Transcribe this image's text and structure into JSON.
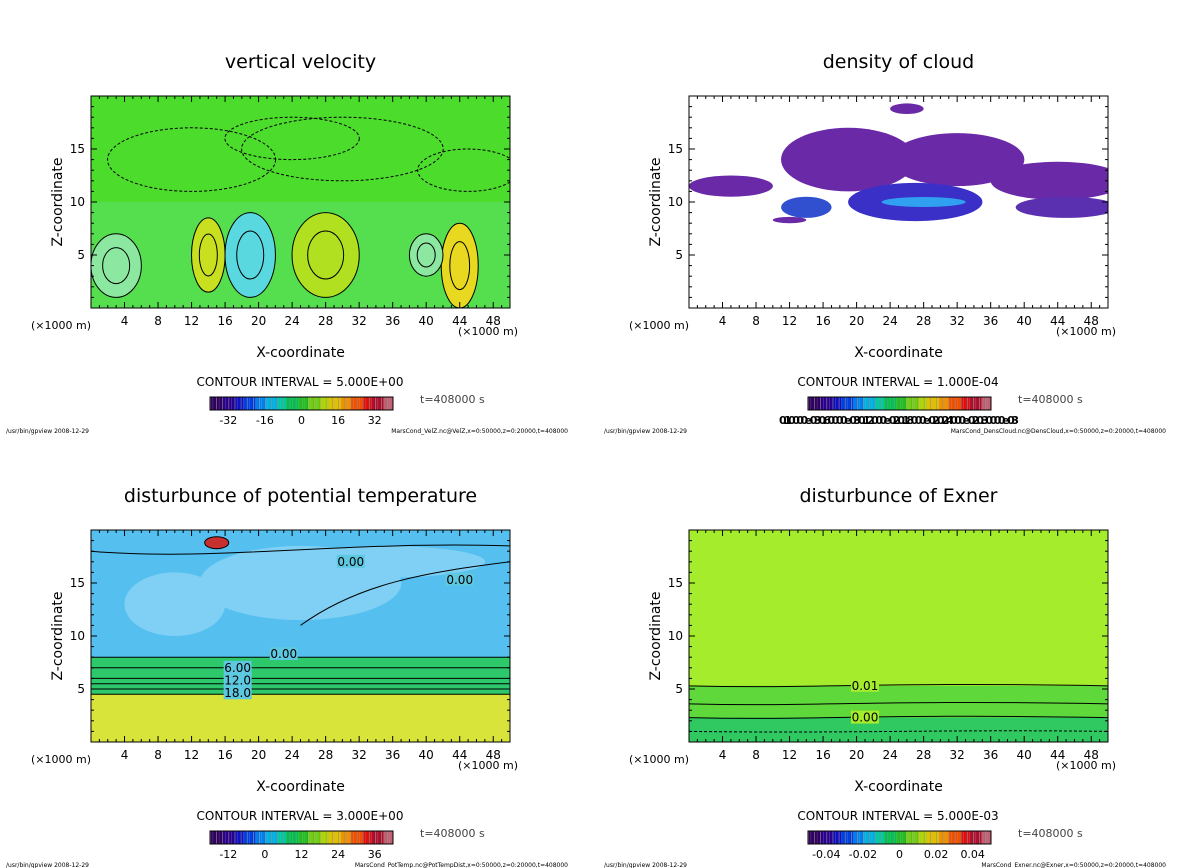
{
  "chart_data": [
    {
      "type": "heatmap",
      "title": "vertical velocity",
      "xlabel": "X-coordinate",
      "ylabel": "Z-coordinate",
      "x_unit": "(×1000 m)",
      "y_unit": "(×1000 m)",
      "xlim": [
        0,
        50
      ],
      "ylim": [
        0,
        20
      ],
      "xticks": [
        "4",
        "8",
        "12",
        "16",
        "20",
        "24",
        "28",
        "32",
        "36",
        "40",
        "44",
        "48"
      ],
      "yticks": [
        "5",
        "10",
        "15"
      ],
      "contour_interval": "CONTOUR INTERVAL = 5.000E+00",
      "colorbar_labels": [
        "-32",
        "-16",
        "0",
        "16",
        "32"
      ],
      "colorbar_range": [
        -40,
        40
      ],
      "contour_labels": [],
      "time": "t=408000 s",
      "footer_left": "/usr/bin/gpview  2008-12-29",
      "footer_right": "MarsCond_VelZ.nc@VelZ,x=0:50000,z=0:20000,t=408000",
      "background": "#4cdc2c"
    },
    {
      "type": "heatmap",
      "title": "density of cloud",
      "xlabel": "X-coordinate",
      "ylabel": "Z-coordinate",
      "x_unit": "(×1000 m)",
      "y_unit": "(×1000 m)",
      "xlim": [
        0,
        50
      ],
      "ylim": [
        0,
        20
      ],
      "xticks": [
        "4",
        "8",
        "12",
        "16",
        "20",
        "24",
        "28",
        "32",
        "36",
        "40",
        "44",
        "48"
      ],
      "yticks": [
        "5",
        "10",
        "15"
      ],
      "contour_interval": "CONTOUR INTERVAL = 1.000E-04",
      "colorbar_labels": [
        "0.10000e-03 0.60000e-03 0.12000e-02 0.18000e-02 0.24000e-02 0.30000e-03"
      ],
      "colorbar_range": [
        0,
        0.003
      ],
      "contour_labels": [],
      "time": "t=408000 s",
      "footer_left": "/usr/bin/gpview  2008-12-29",
      "footer_right": "MarsCond_DensCloud.nc@DensCloud,x=0:50000,z=0:20000,t=408000",
      "background": "#ffffff"
    },
    {
      "type": "heatmap",
      "title": "disturbunce of potential temperature",
      "xlabel": "X-coordinate",
      "ylabel": "Z-coordinate",
      "x_unit": "(×1000 m)",
      "y_unit": "(×1000 m)",
      "xlim": [
        0,
        50
      ],
      "ylim": [
        0,
        20
      ],
      "xticks": [
        "4",
        "8",
        "12",
        "16",
        "20",
        "24",
        "28",
        "32",
        "36",
        "40",
        "44",
        "48"
      ],
      "yticks": [
        "5",
        "10",
        "15"
      ],
      "contour_interval": "CONTOUR INTERVAL = 3.000E+00",
      "colorbar_labels": [
        "-12",
        "0",
        "12",
        "24",
        "36"
      ],
      "colorbar_range": [
        -18,
        42
      ],
      "contour_labels": [
        {
          "text": "0.00",
          "x": 31,
          "z": 17
        },
        {
          "text": "0.00",
          "x": 44,
          "z": 15.3
        },
        {
          "text": "0.00",
          "x": 23,
          "z": 8.3
        },
        {
          "text": "6.00",
          "x": 17.5,
          "z": 7
        },
        {
          "text": "12.0",
          "x": 17.5,
          "z": 5.8
        },
        {
          "text": "18.0",
          "x": 17.5,
          "z": 4.6
        }
      ],
      "time": "t=408000 s",
      "footer_left": "/usr/bin/gpview  2008-12-29",
      "footer_right": "MarsCond_PotTemp.nc@PotTempDist,x=0:50000,z=0:20000,t=408000",
      "background": "#55bff0"
    },
    {
      "type": "heatmap",
      "title": "disturbunce of Exner",
      "xlabel": "X-coordinate",
      "ylabel": "Z-coordinate",
      "x_unit": "(×1000 m)",
      "y_unit": "(×1000 m)",
      "xlim": [
        0,
        50
      ],
      "ylim": [
        0,
        20
      ],
      "xticks": [
        "4",
        "8",
        "12",
        "16",
        "20",
        "24",
        "28",
        "32",
        "36",
        "40",
        "44",
        "48"
      ],
      "yticks": [
        "5",
        "10",
        "15"
      ],
      "contour_interval": "CONTOUR INTERVAL = 5.000E-03",
      "colorbar_labels": [
        "-0.04",
        "-0.02",
        "0",
        "0.02",
        "0.04"
      ],
      "colorbar_range": [
        -0.05,
        0.05
      ],
      "contour_labels": [
        {
          "text": "0.01",
          "x": 21,
          "z": 5.3
        },
        {
          "text": "0.00",
          "x": 21,
          "z": 2.3
        }
      ],
      "time": "t=408000 s",
      "footer_left": "/usr/bin/gpview  2008-12-29",
      "footer_right": "MarsCond_Exner.nc@Exner,x=0:50000,z=0:20000,t=408000",
      "background": "#a4ec2c"
    }
  ]
}
